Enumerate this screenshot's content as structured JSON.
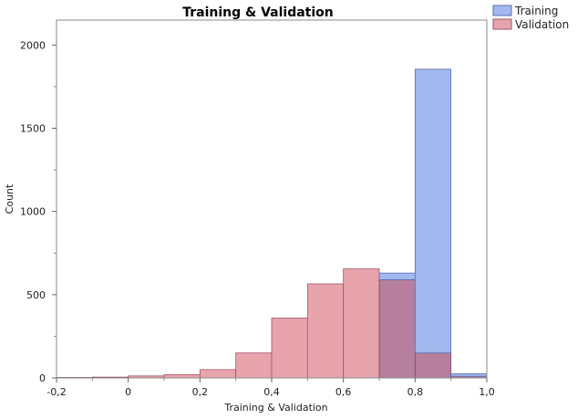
{
  "chart_data": {
    "type": "bar",
    "title": "Training & Validation",
    "xlabel": "Training & Validation",
    "ylabel": "Count",
    "xlim": [
      -0.2,
      1.0
    ],
    "ylim": [
      0,
      2150
    ],
    "x_ticks": [
      -0.2,
      0,
      0.2,
      0.4,
      0.6,
      0.8,
      1.0
    ],
    "x_tick_labels": [
      "-0,2",
      "0",
      "0,2",
      "0,4",
      "0,6",
      "0,8",
      "1,0"
    ],
    "y_ticks": [
      0,
      500,
      1000,
      1500,
      2000
    ],
    "y_tick_labels": [
      "0",
      "500",
      "1000",
      "1500",
      "2000"
    ],
    "bin_edges": [
      -0.2,
      -0.1,
      0.0,
      0.1,
      0.2,
      0.3,
      0.4,
      0.5,
      0.6,
      0.7,
      0.8,
      0.9,
      1.0
    ],
    "grid": false,
    "legend_position": "top-right",
    "series": [
      {
        "name": "Training",
        "color": "#a2b8ee",
        "stroke": "#5a6fb0",
        "values": [
          0,
          0,
          0,
          0,
          0,
          0,
          0,
          0,
          0,
          630,
          1855,
          25
        ]
      },
      {
        "name": "Validation",
        "color": "#e8a4ad",
        "stroke": "#a0566a",
        "values": [
          3,
          5,
          12,
          20,
          50,
          150,
          360,
          565,
          655,
          590,
          150,
          10
        ]
      }
    ],
    "overlap_color": "#b67f9e"
  }
}
